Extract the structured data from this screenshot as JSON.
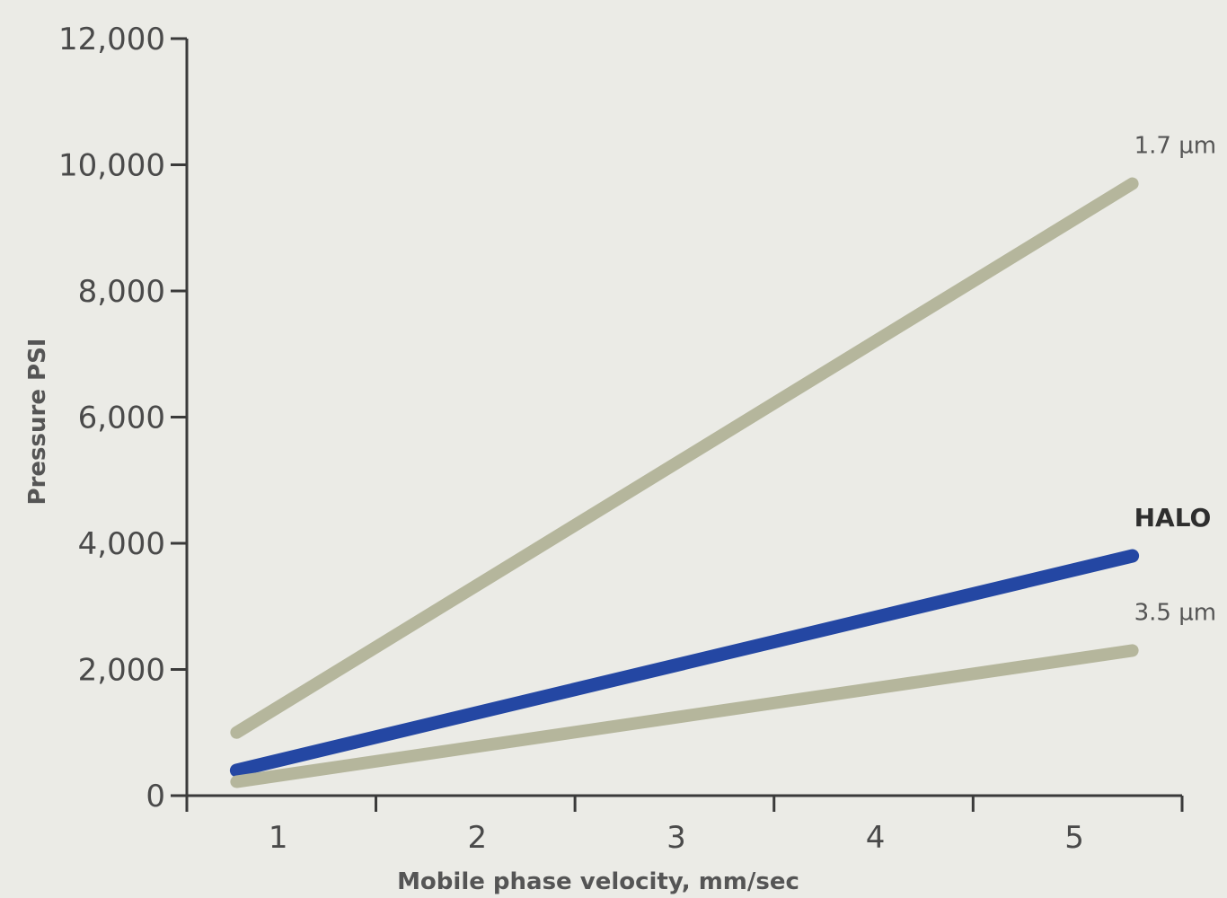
{
  "chart_data": {
    "type": "line",
    "title": "",
    "xlabel": "Mobile phase velocity, mm/sec",
    "ylabel": "Pressure PSI",
    "xlim": [
      0.55,
      5.55
    ],
    "ylim": [
      0,
      12000
    ],
    "x_ticks": [
      1,
      2,
      3,
      4,
      5
    ],
    "x_tick_labels": [
      "1",
      "2",
      "3",
      "4",
      "5"
    ],
    "y_ticks": [
      0,
      2000,
      4000,
      6000,
      8000,
      10000,
      12000
    ],
    "y_tick_labels": [
      "0",
      "2,000",
      "4,000",
      "6,000",
      "8,000",
      "10,000",
      "12,000"
    ],
    "grid": false,
    "legend": "none (series labelled at line ends)",
    "series": [
      {
        "name": "1.7 µm",
        "color": "#b5b69c",
        "x": [
          0.8,
          5.3
        ],
        "y": [
          1000,
          9700
        ]
      },
      {
        "name": "HALO",
        "color": "#2447a3",
        "x": [
          0.8,
          5.3
        ],
        "y": [
          400,
          3800
        ]
      },
      {
        "name": "3.5 µm",
        "color": "#b5b69c",
        "x": [
          0.8,
          5.3
        ],
        "y": [
          220,
          2300
        ]
      }
    ]
  }
}
